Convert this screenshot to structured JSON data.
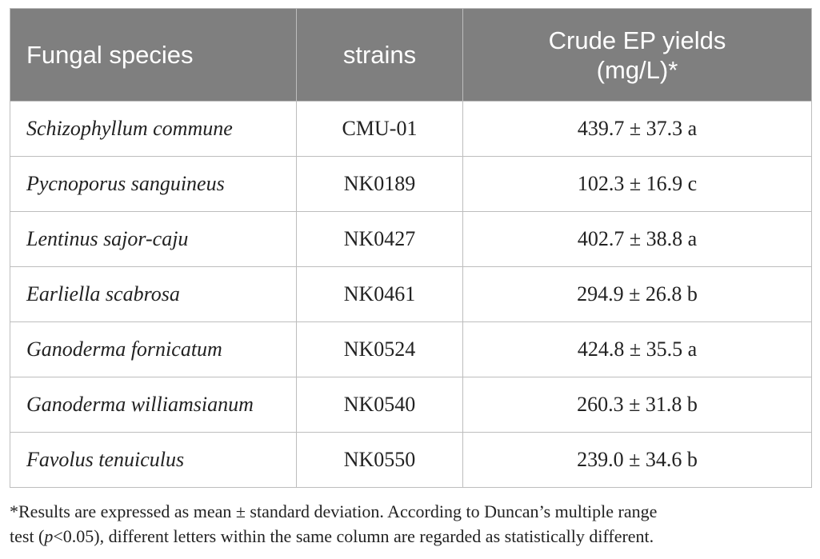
{
  "table": {
    "headers": {
      "species": "Fungal species",
      "strains": "strains",
      "yields_line1": "Crude EP yields",
      "yields_line2": "(mg/L)*"
    },
    "rows": [
      {
        "species": "Schizophyllum commune",
        "strain": "CMU-01",
        "yield": "439.7 ± 37.3 a"
      },
      {
        "species": "Pycnoporus sanguineus",
        "strain": "NK0189",
        "yield": "102.3 ± 16.9 c"
      },
      {
        "species": "Lentinus sajor-caju",
        "strain": "NK0427",
        "yield": "402.7 ± 38.8 a"
      },
      {
        "species": "Earliella scabrosa",
        "strain": "NK0461",
        "yield": "294.9 ± 26.8 b"
      },
      {
        "species": "Ganoderma fornicatum",
        "strain": "NK0524",
        "yield": "424.8 ± 35.5 a"
      },
      {
        "species": "Ganoderma williamsianum",
        "strain": "NK0540",
        "yield": "260.3 ± 31.8 b"
      },
      {
        "species": "Favolus tenuiculus",
        "strain": "NK0550",
        "yield": "239.0 ± 34.6 b"
      }
    ]
  },
  "footnote": {
    "line1": "*Results are expressed as mean ± standard deviation. According to Duncan’s multiple range",
    "line2_pre": "test (",
    "line2_p": "p",
    "line2_post": "<0.05), different letters within the same column are regarded as statistically different."
  }
}
